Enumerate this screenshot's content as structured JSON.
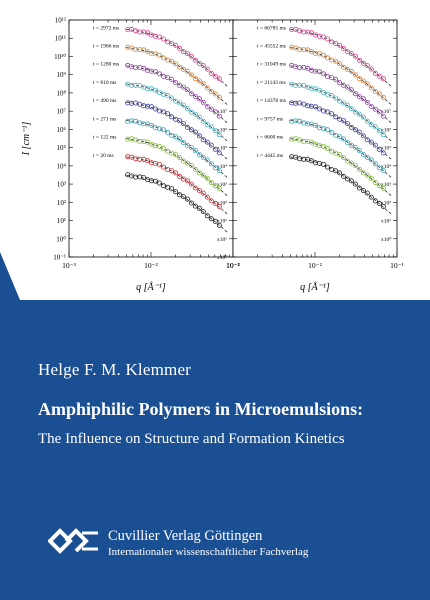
{
  "book": {
    "author": "Helge F. M. Klemmer",
    "title": "Amphiphilic Polymers in Microemulsions:",
    "subtitle": "The Influence on Structure and Formation Kinetics"
  },
  "publisher": {
    "name": "Cuvillier Verlag Göttingen",
    "tagline": "Internationaler wissenschaftlicher Fachverlag"
  },
  "colors": {
    "band": "#1a4f94",
    "text": "#ffffff",
    "panel_bg": "#ffffff"
  },
  "chart_data": [
    {
      "type": "scatter",
      "title": "",
      "xlabel": "q [Å⁻¹]",
      "ylabel": "I [cm⁻¹]",
      "xscale": "log",
      "yscale": "log",
      "xlim": [
        0.001,
        0.1
      ],
      "ylim": [
        0.1,
        1000000000000.0
      ],
      "x_ticks": [
        "10⁻³",
        "10⁻²",
        "10⁻¹"
      ],
      "y_ticks": [
        "10⁻¹",
        "10⁰",
        "10¹",
        "10²",
        "10³",
        "10⁴",
        "10⁵",
        "10⁶",
        "10⁷",
        "10⁸",
        "10⁹",
        "10¹⁰",
        "10¹¹",
        "10¹²"
      ],
      "series": [
        {
          "name": "t = 2972 ms",
          "scale": "x10⁷",
          "color": "#e8358f",
          "plateau": 400000000000.0
        },
        {
          "name": "t = 1966 ms",
          "scale": "x10⁶",
          "color": "#f07d1e",
          "plateau": 40000000000.0
        },
        {
          "name": "t = 1280 ms",
          "scale": "x10⁵",
          "color": "#9b3fb0",
          "plateau": 4000000000.0
        },
        {
          "name": "t = 810 ms",
          "scale": "x10⁴",
          "color": "#3cb4c8",
          "plateau": 400000000.0
        },
        {
          "name": "t = 490 ms",
          "scale": "x10³",
          "color": "#3a3fa8",
          "plateau": 40000000.0
        },
        {
          "name": "t = 271 ms",
          "scale": "x10²",
          "color": "#2ea6c2",
          "plateau": 4000000.0
        },
        {
          "name": "t = 122 ms",
          "scale": "x10¹",
          "color": "#7bbf2a",
          "plateau": 400000.0
        },
        {
          "name": "t = 20 ms",
          "scale": "x10¹",
          "color": "#d8282f",
          "plateau": 40000.0
        },
        {
          "name": "",
          "scale": "x10⁰",
          "color": "#222222",
          "plateau": 4000.0
        }
      ]
    },
    {
      "type": "scatter",
      "title": "",
      "xlabel": "q [Å⁻¹]",
      "ylabel": "",
      "xscale": "log",
      "yscale": "log",
      "xlim": [
        0.001,
        0.1
      ],
      "ylim": [
        0.1,
        1000000000000.0
      ],
      "x_ticks": [
        "10⁻³",
        "10⁻²",
        "10⁻¹"
      ],
      "series": [
        {
          "name": "t = 66785 ms",
          "scale": "x10⁷",
          "color": "#e8358f",
          "plateau": 400000000000.0
        },
        {
          "name": "t = 45552 ms",
          "scale": "x10⁶",
          "color": "#f07d1e",
          "plateau": 40000000000.0
        },
        {
          "name": "t = 31049 ms",
          "scale": "x10⁵",
          "color": "#9b3fb0",
          "plateau": 4000000000.0
        },
        {
          "name": "t = 21143 ms",
          "scale": "x10⁴",
          "color": "#3cb4c8",
          "plateau": 400000000.0
        },
        {
          "name": "t = 14378 ms",
          "scale": "x10³",
          "color": "#3a3fa8",
          "plateau": 40000000.0
        },
        {
          "name": "t = 9757 ms",
          "scale": "x10²",
          "color": "#2ea6c2",
          "plateau": 4000000.0
        },
        {
          "name": "t = 6600 ms",
          "scale": "x10¹",
          "color": "#7bbf2a",
          "plateau": 400000.0
        },
        {
          "name": "t = 4445 ms",
          "scale": "x10⁰",
          "color": "#222222",
          "plateau": 40000.0
        }
      ]
    }
  ]
}
